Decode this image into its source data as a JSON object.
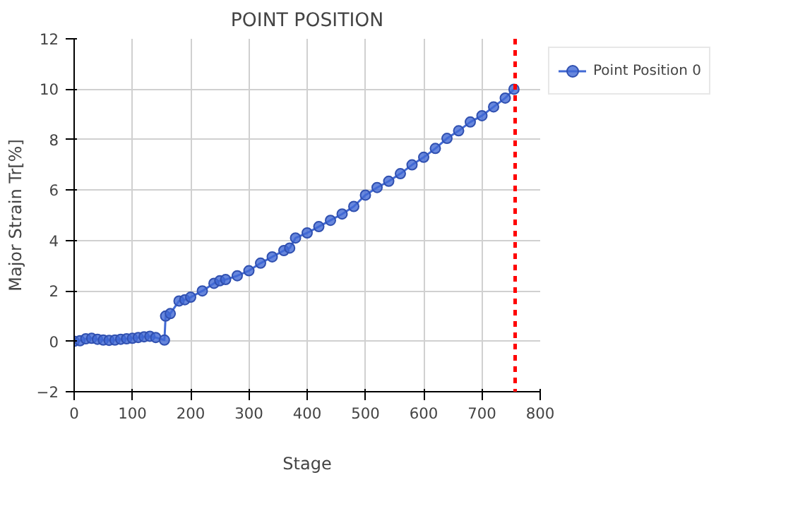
{
  "chart_data": {
    "type": "line",
    "title": "POINT POSITION",
    "xlabel": "Stage",
    "ylabel": "Major Strain Tr[%]",
    "xlim": [
      0,
      800
    ],
    "ylim": [
      -2,
      12
    ],
    "xticks": [
      0,
      100,
      200,
      300,
      400,
      500,
      600,
      700,
      800
    ],
    "yticks": [
      -2,
      0,
      2,
      4,
      6,
      8,
      10,
      12
    ],
    "grid": true,
    "legend": "right",
    "marker": "circle",
    "line_style": "solid",
    "series": [
      {
        "name": "Point Position 0",
        "color": "#4169d4",
        "x": [
          0,
          10,
          20,
          30,
          40,
          50,
          60,
          70,
          80,
          90,
          100,
          110,
          120,
          130,
          140,
          155,
          157,
          165,
          180,
          190,
          200,
          220,
          240,
          250,
          260,
          280,
          300,
          320,
          340,
          360,
          370,
          380,
          400,
          420,
          440,
          460,
          480,
          500,
          520,
          540,
          560,
          580,
          600,
          620,
          640,
          660,
          680,
          700,
          720,
          740,
          755
        ],
        "values": [
          0,
          0.02,
          0.1,
          0.12,
          0.08,
          0.05,
          0.04,
          0.05,
          0.08,
          0.1,
          0.12,
          0.15,
          0.18,
          0.2,
          0.15,
          0.05,
          1.0,
          1.1,
          1.6,
          1.65,
          1.75,
          2.0,
          2.3,
          2.4,
          2.45,
          2.6,
          2.8,
          3.1,
          3.35,
          3.6,
          3.7,
          4.1,
          4.3,
          4.55,
          4.8,
          5.05,
          5.35,
          5.8,
          6.1,
          6.35,
          6.65,
          7.0,
          7.3,
          7.65,
          8.05,
          8.35,
          8.7,
          8.95,
          9.3,
          9.65,
          10.0
        ]
      }
    ],
    "ref_lines": [
      {
        "axis": "x",
        "value": 757,
        "color": "#ff0000",
        "line_style": "dashed"
      }
    ]
  }
}
